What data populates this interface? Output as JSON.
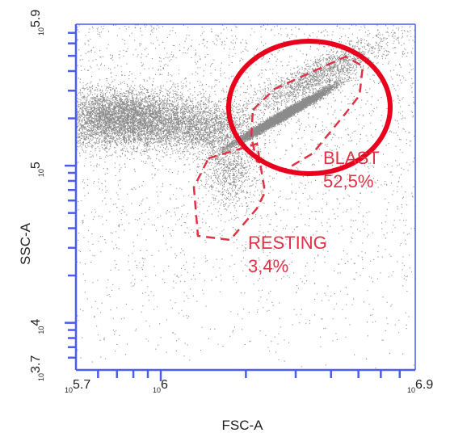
{
  "chart_data": {
    "type": "scatter",
    "xlabel": "FSC-A",
    "ylabel": "SSC-A",
    "x_scale": "log",
    "y_scale": "log",
    "xlim": [
      5.7,
      6.9
    ],
    "ylim": [
      3.7,
      5.9
    ],
    "x_ticks": [
      {
        "exp": "5.7",
        "base": "10"
      },
      {
        "exp": "6",
        "base": "10"
      },
      {
        "exp": "6.9",
        "base": "10"
      }
    ],
    "y_ticks": [
      {
        "exp": "3.7",
        "base": "10"
      },
      {
        "exp": "4",
        "base": "10"
      },
      {
        "exp": "5",
        "base": "10"
      },
      {
        "exp": "5.9",
        "base": "10"
      }
    ],
    "populations": [
      {
        "cx": 6.43,
        "cy": 5.32,
        "sx": 0.07,
        "sy": 0.09,
        "rot": -40,
        "n": 9000
      },
      {
        "cx": 5.87,
        "cy": 5.3,
        "sx": 0.12,
        "sy": 0.09,
        "rot": 0,
        "n": 5500
      },
      {
        "cx": 6.15,
        "cy": 5.25,
        "sx": 0.09,
        "sy": 0.08,
        "rot": 0,
        "n": 1800
      },
      {
        "cx": 6.24,
        "cy": 4.97,
        "sx": 0.05,
        "sy": 0.12,
        "rot": 0,
        "n": 800
      },
      {
        "cx": 6.56,
        "cy": 5.58,
        "sx": 0.12,
        "sy": 0.12,
        "rot": -30,
        "n": 1600
      },
      {
        "uniform": true,
        "n": 2600
      }
    ],
    "gates": [
      {
        "name": "BLAST",
        "value": "52,5%"
      },
      {
        "name": "RESTING",
        "value": "3,4%"
      }
    ],
    "annotation": {
      "shape": "ellipse",
      "color": "#e8001c",
      "highlights": "BLAST"
    },
    "colors": {
      "axis": "#4b5cf0",
      "gate": "#e03244",
      "dots": "#2b2b2b",
      "highlight": "#e8001c"
    }
  }
}
